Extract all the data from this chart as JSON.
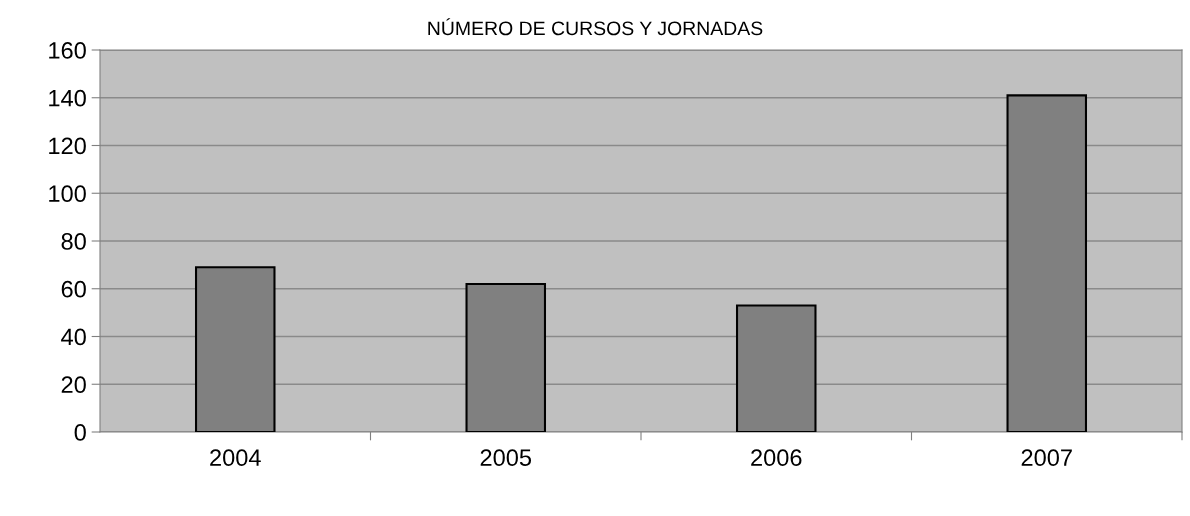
{
  "chart_data": {
    "type": "bar",
    "title": "NÚMERO DE CURSOS Y JORNADAS",
    "categories": [
      "2004",
      "2005",
      "2006",
      "2007"
    ],
    "series": [
      {
        "color": "#808080",
        "values": [
          69,
          62,
          53,
          141
        ]
      }
    ],
    "ylim": [
      0,
      160
    ],
    "yticks": [
      0,
      20,
      40,
      60,
      80,
      100,
      120,
      140,
      160
    ],
    "grid": "y",
    "legend": false
  }
}
